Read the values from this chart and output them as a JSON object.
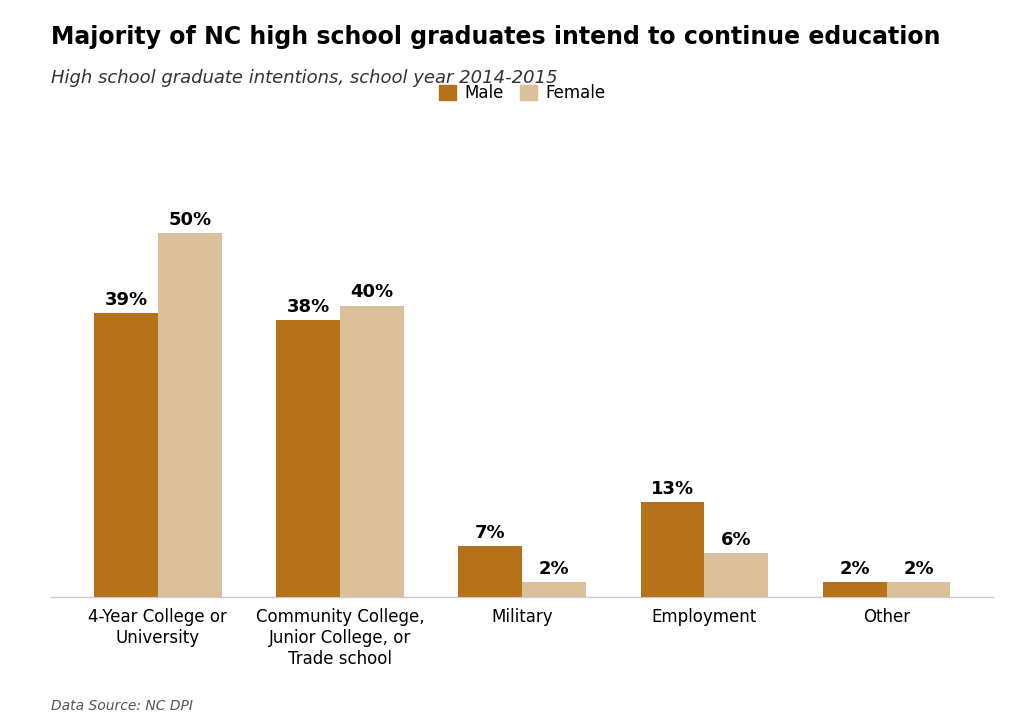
{
  "title": "Majority of NC high school graduates intend to continue education",
  "subtitle": "High school graduate intentions, school year 2014-2015",
  "categories": [
    "4-Year College or\nUniversity",
    "Community College,\nJunior College, or\nTrade school",
    "Military",
    "Employment",
    "Other"
  ],
  "male_values": [
    39,
    38,
    7,
    13,
    2
  ],
  "female_values": [
    50,
    40,
    2,
    6,
    2
  ],
  "male_color": "#B5721B",
  "female_color": "#DBBF9A",
  "male_label": "Male",
  "female_label": "Female",
  "bar_width": 0.35,
  "ylim": [
    0,
    58
  ],
  "datasource": "Data Source: NC DPI",
  "background_color": "#ffffff",
  "title_fontsize": 17,
  "subtitle_fontsize": 13,
  "label_fontsize": 12,
  "value_fontsize": 13,
  "legend_fontsize": 12
}
